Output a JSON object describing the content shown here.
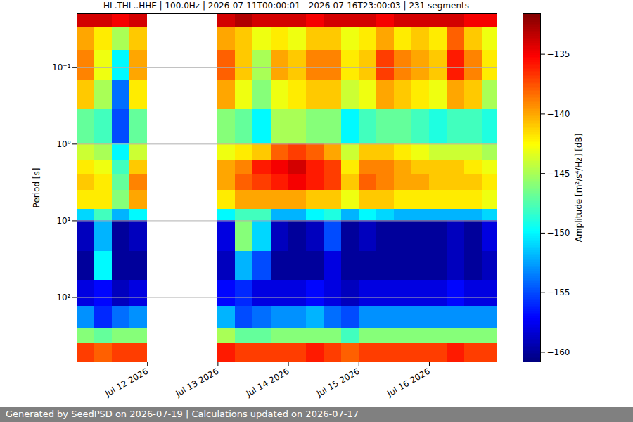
{
  "chart_data": {
    "type": "heatmap",
    "title": "HL.THL..HHE | 100.0Hz | 2026-07-11T00:00:01 - 2026-07-16T23:00:03 | 231 segments",
    "caption": "Generated by SeedPSD on 2026-07-19 | Calculations updated on 2026-07-17",
    "y_label": "Period [s]",
    "log": "y",
    "grid": "y",
    "color": "jet",
    "xlim": [
      "2026-07-11T00:00:01",
      "2026-07-16T23:00:03"
    ],
    "xticks": [
      {
        "value": "2026-07-12T00:00:00",
        "label": "Jul 12 2026"
      },
      {
        "value": "2026-07-13T00:00:00",
        "label": "Jul 13 2026"
      },
      {
        "value": "2026-07-14T00:00:00",
        "label": "Jul 14 2026"
      },
      {
        "value": "2026-07-15T00:00:00",
        "label": "Jul 15 2026"
      },
      {
        "value": "2026-07-16T00:00:00",
        "label": "Jul 16 2026"
      }
    ],
    "ylim": [
      0.02,
      690
    ],
    "yticks": [
      {
        "value": 0.1,
        "label": "10⁻¹"
      },
      {
        "value": 1,
        "label": "10⁰"
      },
      {
        "value": 10,
        "label": "10¹"
      },
      {
        "value": 100,
        "label": "10²"
      }
    ],
    "x_edges": [
      "2026-07-11T00:00:01",
      "2026-07-11T06:00:00",
      "2026-07-11T12:00:00",
      "2026-07-11T18:00:00",
      "2026-07-12T00:00:00",
      "2026-07-12T06:00:00",
      "2026-07-12T12:00:00",
      "2026-07-12T18:00:00",
      "2026-07-13T00:00:00",
      "2026-07-13T06:00:00",
      "2026-07-13T12:00:00",
      "2026-07-13T18:00:00",
      "2026-07-14T00:00:00",
      "2026-07-14T06:00:00",
      "2026-07-14T12:00:00",
      "2026-07-14T18:00:00",
      "2026-07-15T00:00:00",
      "2026-07-15T06:00:00",
      "2026-07-15T12:00:00",
      "2026-07-15T18:00:00",
      "2026-07-16T00:00:00",
      "2026-07-16T06:00:00",
      "2026-07-16T12:00:00",
      "2026-07-16T18:00:00",
      "2026-07-16T23:00:03"
    ],
    "y_edges": [
      0.02,
      0.03,
      0.06,
      0.15,
      0.35,
      1,
      1.6,
      2.5,
      4,
      7,
      10,
      25,
      60,
      130,
      250,
      400,
      690
    ],
    "z": [
      [
        -134,
        -134,
        -135,
        -134,
        null,
        null,
        null,
        null,
        -134,
        -133,
        -134,
        -134,
        -134,
        -135,
        -134,
        -134,
        -134,
        -135,
        -134,
        -134,
        -134,
        -134,
        -135,
        -135
      ],
      [
        -140,
        -142,
        -145,
        -141,
        null,
        null,
        null,
        null,
        -140,
        -141,
        -143,
        -142,
        -143,
        -141,
        -141,
        -143,
        -142,
        -140,
        -142,
        -141,
        -142,
        -138,
        -141,
        -143
      ],
      [
        -139,
        -143,
        -150,
        -140,
        null,
        null,
        null,
        null,
        -138,
        -141,
        -145,
        -140,
        -141,
        -139,
        -139,
        -142,
        -141,
        -137,
        -139,
        -140,
        -141,
        -136,
        -139,
        -142
      ],
      [
        -141,
        -145,
        -154,
        -142,
        null,
        null,
        null,
        null,
        -140,
        -143,
        -146,
        -143,
        -142,
        -141,
        -141,
        -144,
        -143,
        -140,
        -141,
        -142,
        -143,
        -140,
        -141,
        -145
      ],
      [
        -147,
        -148,
        -155,
        -147,
        null,
        null,
        null,
        null,
        -146,
        -147,
        -150,
        -145,
        -145,
        -146,
        -146,
        -150,
        -148,
        -147,
        -147,
        -148,
        -149,
        -148,
        -148,
        -149
      ],
      [
        -144,
        -145,
        -150,
        -144,
        null,
        null,
        null,
        null,
        -143,
        -142,
        -141,
        -138,
        -137,
        -138,
        -140,
        -144,
        -141,
        -141,
        -142,
        -143,
        -144,
        -144,
        -144,
        -145
      ],
      [
        -142,
        -143,
        -148,
        -141,
        null,
        null,
        null,
        null,
        -140,
        -139,
        -136,
        -135,
        -134,
        -136,
        -137,
        -142,
        -139,
        -139,
        -140,
        -141,
        -141,
        -141,
        -142,
        -143
      ],
      [
        -141,
        -142,
        -147,
        -139,
        null,
        null,
        null,
        null,
        -140,
        -138,
        -137,
        -136,
        -135,
        -136,
        -137,
        -141,
        -138,
        -139,
        -140,
        -140,
        -141,
        -141,
        -141,
        -142
      ],
      [
        -142,
        -142,
        -146,
        -140,
        null,
        null,
        null,
        null,
        -142,
        -140,
        -140,
        -140,
        -140,
        -141,
        -141,
        -143,
        -141,
        -141,
        -142,
        -142,
        -142,
        -142,
        -142,
        -143
      ],
      [
        -151,
        -148,
        -152,
        -150,
        null,
        null,
        null,
        null,
        -150,
        -148,
        -148,
        -152,
        -152,
        -150,
        -149,
        -152,
        -150,
        -151,
        -152,
        -152,
        -152,
        -152,
        -152,
        -151
      ],
      [
        -159,
        -152,
        -160,
        -159,
        null,
        null,
        null,
        null,
        -158,
        -146,
        -151,
        -159,
        -160,
        -159,
        -155,
        -160,
        -159,
        -160,
        -160,
        -160,
        -160,
        -159,
        -160,
        -158
      ],
      [
        -160,
        -150,
        -160,
        -160,
        null,
        null,
        null,
        null,
        -159,
        -152,
        -155,
        -160,
        -160,
        -160,
        -158,
        -160,
        -160,
        -160,
        -160,
        -160,
        -160,
        -159,
        -160,
        -159
      ],
      [
        -158,
        -157,
        -159,
        -158,
        null,
        null,
        null,
        null,
        -157,
        -156,
        -158,
        -158,
        -158,
        -157,
        -158,
        -159,
        -158,
        -158,
        -158,
        -158,
        -158,
        -157,
        -158,
        -158
      ],
      [
        -153,
        -156,
        -154,
        -153,
        null,
        null,
        null,
        null,
        -152,
        -155,
        -154,
        -153,
        -153,
        -152,
        -154,
        -155,
        -153,
        -153,
        -153,
        -153,
        -153,
        -153,
        -153,
        -153
      ],
      [
        -146,
        -147,
        -146,
        -146,
        null,
        null,
        null,
        null,
        -145,
        -147,
        -147,
        -146,
        -146,
        -146,
        -146,
        -148,
        -146,
        -146,
        -146,
        -146,
        -146,
        -146,
        -146,
        -146
      ],
      [
        -137,
        -138,
        -137,
        -137,
        null,
        null,
        null,
        null,
        -136,
        -137,
        -137,
        -137,
        -137,
        -136,
        -137,
        -138,
        -137,
        -137,
        -137,
        -137,
        -137,
        -136,
        -137,
        -137
      ]
    ],
    "colorbar": {
      "label": "Amplitude [m²/s⁴/Hz] [dB]",
      "lim": [
        -160.8,
        -131.6
      ],
      "ticks": [
        {
          "value": -135,
          "label": "−135"
        },
        {
          "value": -140,
          "label": "−140"
        },
        {
          "value": -145,
          "label": "−145"
        },
        {
          "value": -150,
          "label": "−150"
        },
        {
          "value": -155,
          "label": "−155"
        },
        {
          "value": -160,
          "label": "−160"
        }
      ]
    }
  }
}
